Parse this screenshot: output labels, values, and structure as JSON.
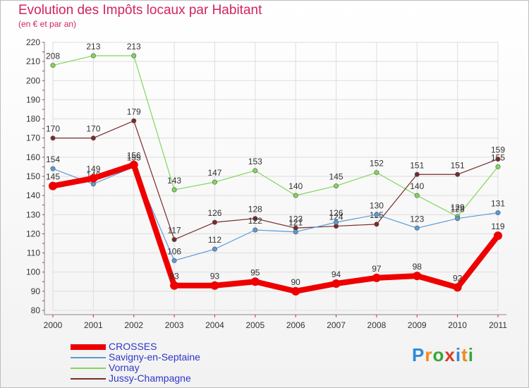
{
  "header": {
    "title": "Evolution des Impôts locaux par Habitant",
    "subtitle": "(en € et par an)"
  },
  "logo": {
    "text": "Proxiti",
    "letters": [
      "P",
      "r",
      "o",
      "x",
      "i",
      "t",
      "i"
    ],
    "colors": [
      "#2f8ad8",
      "#f08a1c",
      "#3aa63a",
      "#d93a2b",
      "#2f8ad8",
      "#f08a1c",
      "#3aa63a"
    ]
  },
  "chart_data": {
    "type": "line",
    "title": "Evolution des Impôts locaux par Habitant",
    "subtitle": "(en € et par an)",
    "xlabel": "",
    "ylabel": "",
    "x": [
      "2000",
      "2001",
      "2002",
      "2003",
      "2004",
      "2005",
      "2006",
      "2007",
      "2008",
      "2009",
      "2010",
      "2011"
    ],
    "ylim": [
      80,
      220
    ],
    "yticks": [
      80,
      90,
      100,
      110,
      120,
      130,
      140,
      150,
      160,
      170,
      180,
      190,
      200,
      210,
      220
    ],
    "grid": true,
    "legend_position": "bottom-left",
    "series": [
      {
        "name": "Vornay",
        "color": "#82d65a",
        "values": [
          208,
          213,
          213,
          143,
          147,
          153,
          140,
          145,
          152,
          140,
          129,
          155
        ]
      },
      {
        "name": "Jussy-Champagne",
        "color": "#7a2a2a",
        "values": [
          170,
          170,
          179,
          117,
          126,
          128,
          123,
          124,
          125,
          151,
          151,
          159
        ]
      },
      {
        "name": "Savigny-en-Septaine",
        "color": "#5a9ad6",
        "values": [
          154,
          146,
          155,
          106,
          112,
          122,
          121,
          126,
          130,
          123,
          128,
          131
        ]
      },
      {
        "name": "CROSSES",
        "color": "#ee0000",
        "values": [
          145,
          149,
          156,
          93,
          93,
          95,
          90,
          94,
          97,
          98,
          92,
          119
        ]
      }
    ],
    "legend": [
      {
        "name": "CROSSES",
        "color": "#ee0000",
        "thickness": 8
      },
      {
        "name": "Savigny-en-Septaine",
        "color": "#5a9ad6",
        "thickness": 2
      },
      {
        "name": "Vornay",
        "color": "#82d65a",
        "thickness": 2
      },
      {
        "name": "Jussy-Champagne",
        "color": "#7a2a2a",
        "thickness": 2
      }
    ]
  }
}
